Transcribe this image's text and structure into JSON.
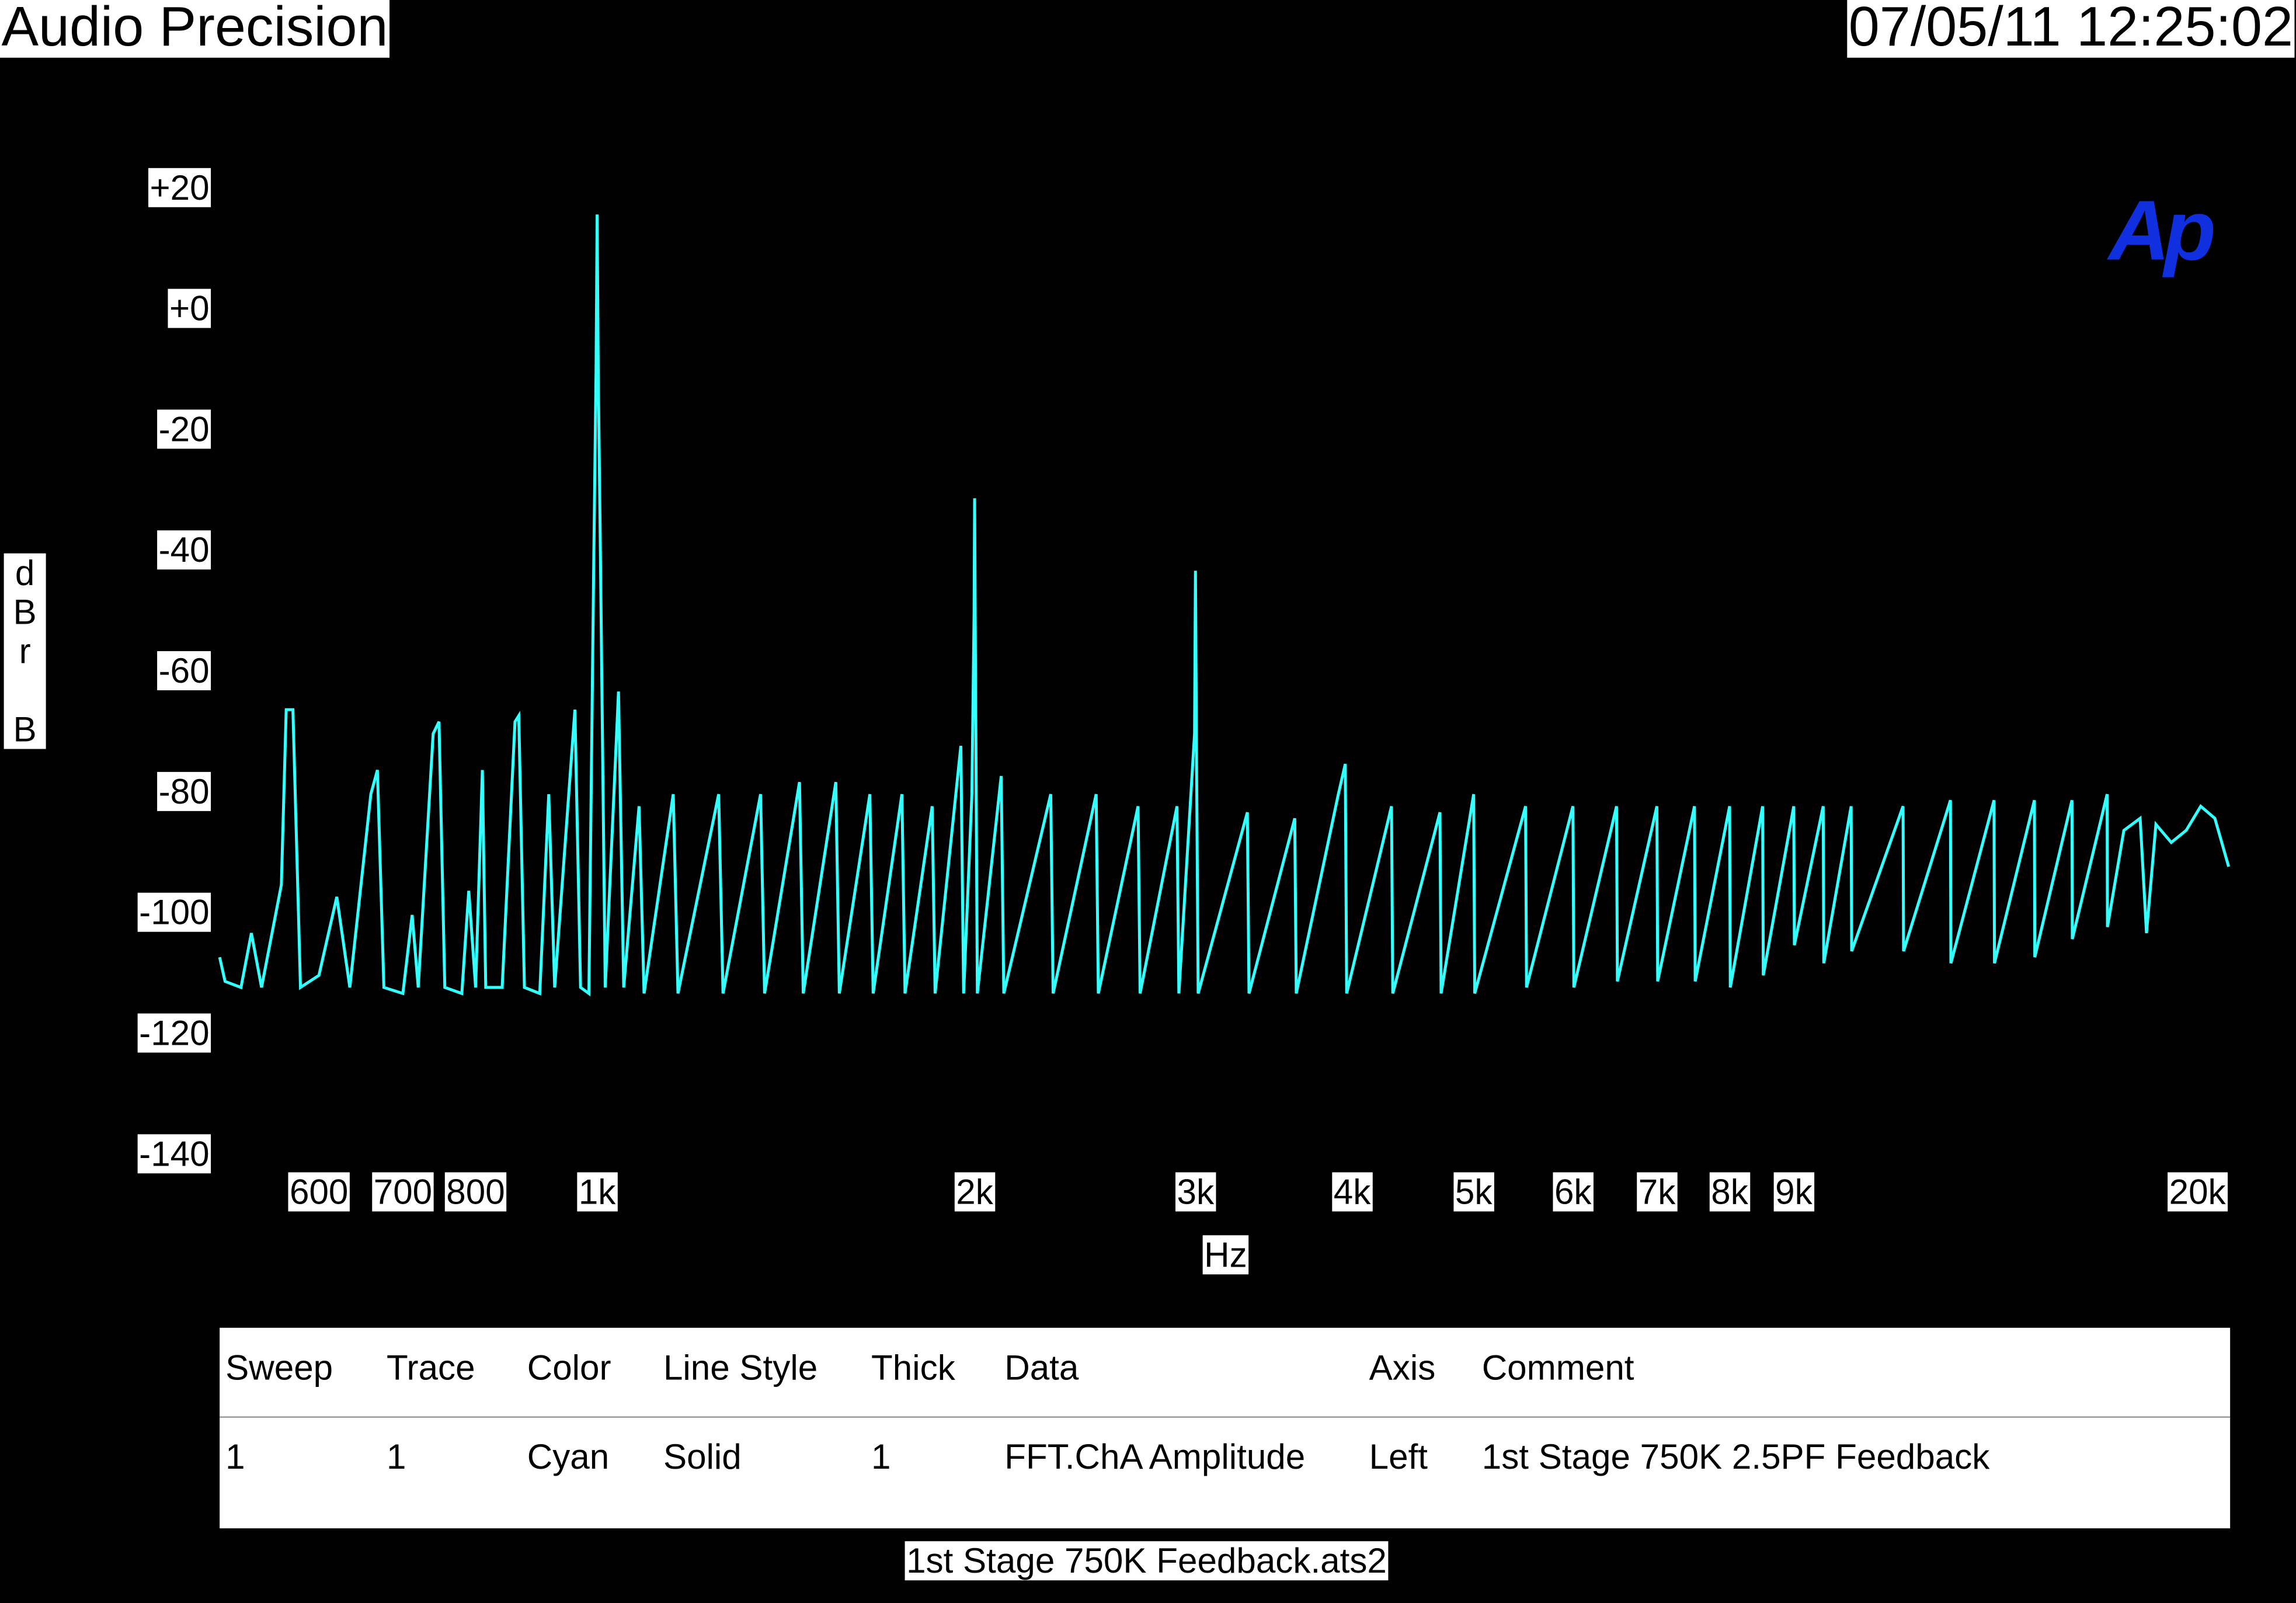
{
  "header": {
    "left": "Audio Precision",
    "right": "07/05/11 12:25:02"
  },
  "logo": "Ap",
  "chart_data": {
    "type": "line",
    "x_label": "Hz",
    "y_label": "dBr B",
    "color": "#33ffff",
    "log_x": true,
    "grid": false,
    "xlim": [
      500,
      20000
    ],
    "ylim": [
      -140,
      20
    ],
    "xticks": [
      600,
      700,
      800,
      {
        "value": 1000,
        "label": "1k"
      },
      {
        "value": 2000,
        "label": "2k"
      },
      {
        "value": 3000,
        "label": "3k"
      },
      {
        "value": 4000,
        "label": "4k"
      },
      {
        "value": 5000,
        "label": "5k"
      },
      {
        "value": 6000,
        "label": "6k"
      },
      {
        "value": 7000,
        "label": "7k"
      },
      {
        "value": 8000,
        "label": "8k"
      },
      {
        "value": 9000,
        "label": "9k"
      },
      {
        "value": 20000,
        "label": "20k"
      }
    ],
    "yticks": [
      {
        "value": 20,
        "label": "+20"
      },
      {
        "value": 0,
        "label": "+0"
      },
      -20,
      -40,
      -60,
      -80,
      -100,
      -120,
      -140
    ],
    "x": [
      500,
      505,
      520,
      530,
      540,
      560,
      565,
      572,
      580,
      600,
      620,
      635,
      660,
      668,
      676,
      700,
      712,
      720,
      740,
      748,
      756,
      780,
      790,
      800,
      810,
      815,
      840,
      860,
      866,
      875,
      900,
      915,
      925,
      960,
      970,
      985,
      994,
      998,
      1000,
      1002,
      1006,
      1015,
      1040,
      1050,
      1080,
      1090,
      1150,
      1160,
      1250,
      1260,
      1350,
      1360,
      1450,
      1460,
      1550,
      1560,
      1650,
      1660,
      1750,
      1760,
      1850,
      1860,
      1950,
      1960,
      1990,
      1998,
      2000,
      2002,
      2010,
      2100,
      2110,
      2300,
      2310,
      2500,
      2510,
      2700,
      2710,
      2900,
      2910,
      2995,
      3000,
      3005,
      3015,
      3300,
      3310,
      3600,
      3610,
      3900,
      3950,
      3960,
      4300,
      4310,
      4700,
      4710,
      5000,
      5010,
      5500,
      5510,
      6000,
      6010,
      6500,
      6510,
      7000,
      7010,
      7500,
      7510,
      8000,
      8010,
      8500,
      8510,
      9000,
      9010,
      9500,
      9510,
      10000,
      10010,
      11000,
      11010,
      12000,
      12010,
      13000,
      13010,
      14000,
      14010,
      15000,
      15010,
      16000,
      16010,
      16500,
      17000,
      17200,
      17500,
      18000,
      18500,
      19000,
      19500,
      20000
    ],
    "values": [
      -107,
      -111,
      -112,
      -103,
      -112,
      -95,
      -66,
      -66,
      -112,
      -110,
      -97,
      -112,
      -80,
      -76,
      -112,
      -113,
      -100,
      -112,
      -70,
      -68,
      -112,
      -113,
      -96,
      -112,
      -76,
      -112,
      -112,
      -68,
      -67,
      -112,
      -113,
      -80,
      -112,
      -66,
      -112,
      -113,
      -40,
      -10,
      16,
      -10,
      -40,
      -112,
      -63,
      -112,
      -82,
      -113,
      -80,
      -113,
      -80,
      -113,
      -80,
      -113,
      -78,
      -113,
      -78,
      -113,
      -80,
      -113,
      -80,
      -113,
      -82,
      -113,
      -72,
      -113,
      -80,
      -50,
      -31,
      -50,
      -113,
      -77,
      -113,
      -80,
      -113,
      -80,
      -113,
      -82,
      -113,
      -82,
      -113,
      -70,
      -43,
      -70,
      -113,
      -83,
      -113,
      -84,
      -113,
      -80,
      -75,
      -113,
      -82,
      -113,
      -83,
      -113,
      -80,
      -113,
      -82,
      -112,
      -82,
      -112,
      -82,
      -111,
      -82,
      -111,
      -82,
      -111,
      -82,
      -112,
      -82,
      -110,
      -82,
      -105,
      -82,
      -108,
      -82,
      -106,
      -82,
      -106,
      -81,
      -108,
      -81,
      -108,
      -81,
      -107,
      -81,
      -104,
      -80,
      -102,
      -86,
      -84,
      -103,
      -85,
      -88,
      -86,
      -82,
      -84,
      -92
    ]
  },
  "legend_table": {
    "columns": [
      "Sweep",
      "Trace",
      "Color",
      "Line Style",
      "Thick",
      "Data",
      "Axis",
      "Comment"
    ],
    "rows": [
      [
        "1",
        "1",
        "Cyan",
        "Solid",
        "1",
        "FFT.ChA Amplitude",
        "Left",
        "1st Stage 750K 2.5PF Feedback"
      ]
    ]
  },
  "footer": "1st Stage 750K Feedback.ats2"
}
